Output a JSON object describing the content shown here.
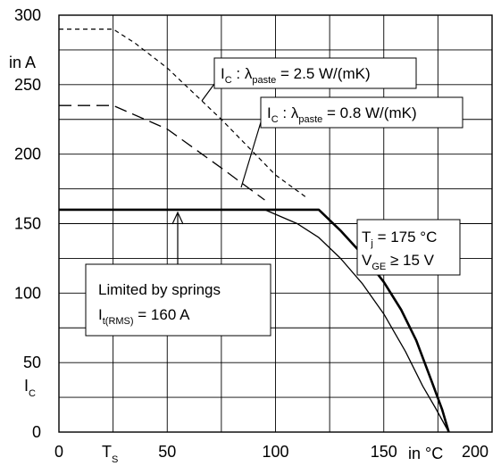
{
  "chart_data": {
    "type": "line",
    "xlim": [
      0,
      200
    ],
    "ylim": [
      0,
      300
    ],
    "x_ticks": [
      0,
      50,
      100,
      150,
      200
    ],
    "y_ticks": [
      0,
      50,
      100,
      150,
      200,
      250,
      300
    ],
    "x_tick_labels": [
      "0",
      "50",
      "100",
      "150",
      "200"
    ],
    "y_tick_labels": [
      "0",
      "50",
      "100",
      "150",
      "200",
      "250",
      "300"
    ],
    "x_special_tick": {
      "x": 25,
      "label": "T",
      "subscript": "S"
    },
    "x_unit_label": "in °C",
    "y_unit_label": "in A",
    "y_symbol": {
      "main": "I",
      "subscript": "C"
    },
    "grid": true,
    "series": [
      {
        "line_style": "dashed-short",
        "points": [
          [
            0,
            290
          ],
          [
            25,
            290
          ],
          [
            35,
            280
          ],
          [
            50,
            262
          ],
          [
            75,
            225
          ],
          [
            100,
            185
          ],
          [
            115,
            168
          ]
        ]
      },
      {
        "line_style": "dashed-long",
        "points": [
          [
            0,
            235
          ],
          [
            25,
            235
          ],
          [
            50,
            218
          ],
          [
            75,
            190
          ],
          [
            95,
            167
          ]
        ]
      },
      {
        "line_style": "solid-thick",
        "points": [
          [
            0,
            160
          ],
          [
            120,
            160
          ],
          [
            130,
            145
          ],
          [
            140,
            128
          ],
          [
            150,
            108
          ],
          [
            158,
            88
          ],
          [
            165,
            66
          ],
          [
            172,
            37
          ],
          [
            177,
            16
          ],
          [
            180,
            0
          ]
        ]
      },
      {
        "line_style": "solid-thin",
        "points": [
          [
            95,
            160
          ],
          [
            110,
            150
          ],
          [
            120,
            140
          ],
          [
            130,
            125
          ],
          [
            140,
            107
          ],
          [
            150,
            85
          ],
          [
            160,
            58
          ],
          [
            168,
            33
          ],
          [
            174,
            17
          ],
          [
            180,
            0
          ]
        ]
      }
    ],
    "annotations": {
      "label_a": {
        "main": "I",
        "sub1": "C",
        "mid": " : λ",
        "sub2": "paste",
        "tail": " = 2.5 W/(mK)"
      },
      "label_b": {
        "main": "I",
        "sub1": "C",
        "mid": " : λ",
        "sub2": "paste",
        "tail": " = 0.8 W/(mK)"
      },
      "conditions": {
        "line1_main": "T",
        "line1_sub": "j",
        "line1_tail": " = 175 °C",
        "line2_main": "V",
        "line2_sub": "GE",
        "line2_tail": " ≥ 15 V"
      },
      "limit_box": {
        "line1": "Limited by springs",
        "line2_main": "I",
        "line2_sub": "t(RMS)",
        "line2_tail": " = 160 A"
      }
    }
  }
}
